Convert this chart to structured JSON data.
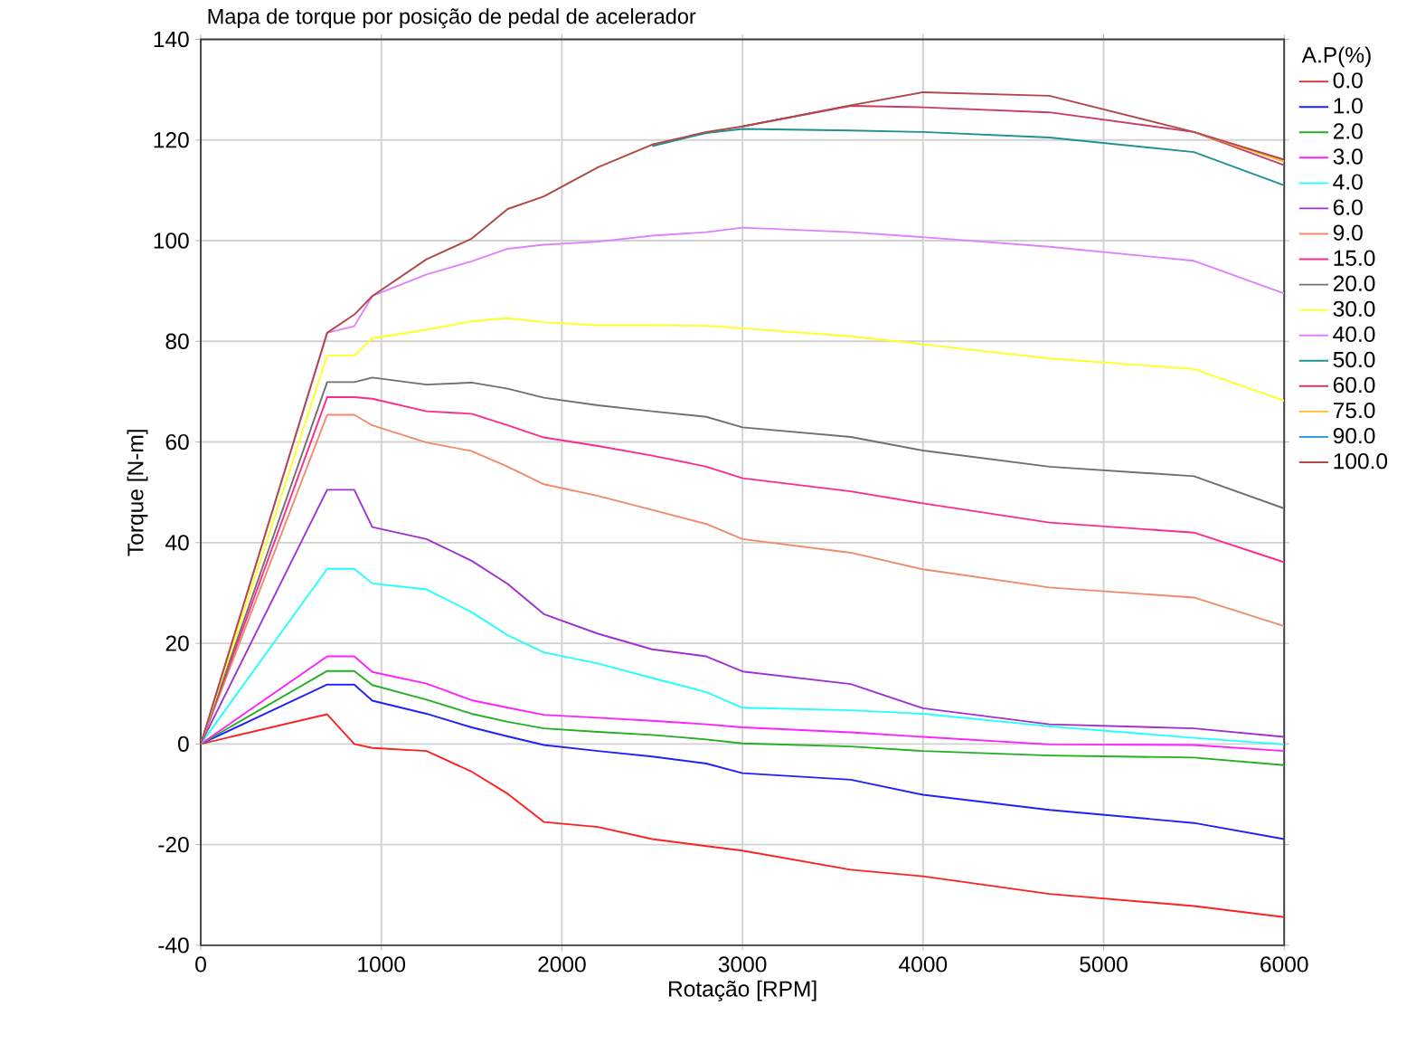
{
  "chart_data": {
    "type": "line",
    "title": "Mapa de torque por posição de pedal de acelerador",
    "xlabel": "Rotação [RPM]",
    "ylabel": "Torque [N-m]",
    "legend_title": "A.P(%)",
    "x": [
      0,
      700,
      850,
      950,
      1250,
      1500,
      1700,
      1900,
      2200,
      2500,
      2800,
      3000,
      3600,
      4000,
      4700,
      5500,
      6000
    ],
    "xlim": [
      0,
      6000
    ],
    "xticks": [
      0,
      1000,
      2000,
      3000,
      4000,
      5000,
      6000
    ],
    "ylim": [
      -40,
      140
    ],
    "yticks": [
      -40,
      -20,
      0,
      20,
      40,
      60,
      80,
      100,
      120,
      140
    ],
    "grid": true,
    "legend": "right",
    "line_style": "solid",
    "series": [
      {
        "name": "0.0",
        "color": "#ff2020",
        "values": [
          0,
          5.9,
          0,
          -0.8,
          -1.4,
          -5.5,
          -9.9,
          -15.5,
          -16.5,
          -18.9,
          -20.3,
          -21.2,
          -25,
          -26.3,
          -29.8,
          -32.2,
          -34.4
        ]
      },
      {
        "name": "1.0",
        "color": "#2020ff",
        "values": [
          0,
          11.8,
          11.8,
          8.6,
          6.0,
          3.3,
          1.5,
          -0.2,
          -1.4,
          -2.5,
          -3.9,
          -5.8,
          -7.1,
          -10.1,
          -13.1,
          -15.7,
          -18.9
        ]
      },
      {
        "name": "2.0",
        "color": "#22b022",
        "values": [
          0,
          14.5,
          14.5,
          11.7,
          8.8,
          6.0,
          4.4,
          3.1,
          2.4,
          1.8,
          0.9,
          0.1,
          -0.5,
          -1.4,
          -2.3,
          -2.7,
          -4.2
        ]
      },
      {
        "name": "3.0",
        "color": "#ff20ff",
        "values": [
          0,
          17.4,
          17.4,
          14.3,
          12.0,
          8.7,
          7.2,
          5.8,
          5.2,
          4.6,
          3.9,
          3.3,
          2.3,
          1.4,
          -0.1,
          -0.2,
          -1.4
        ]
      },
      {
        "name": "4.0",
        "color": "#20ffff",
        "values": [
          0,
          34.8,
          34.8,
          31.9,
          30.7,
          26.2,
          21.6,
          18.2,
          16.0,
          13.1,
          10.3,
          7.2,
          6.7,
          6.0,
          3.5,
          1.2,
          -0.1
        ]
      },
      {
        "name": "6.0",
        "color": "#a030d0",
        "values": [
          0,
          50.5,
          50.5,
          43.1,
          40.7,
          36.4,
          31.8,
          25.8,
          21.9,
          18.8,
          17.4,
          14.4,
          11.9,
          7.1,
          3.9,
          3.1,
          1.4
        ]
      },
      {
        "name": "9.0",
        "color": "#f08a6a",
        "values": [
          0,
          65.4,
          65.4,
          63.3,
          59.9,
          58.2,
          55.1,
          51.6,
          49.3,
          46.5,
          43.7,
          40.7,
          38.0,
          34.7,
          31.1,
          29.1,
          23.4
        ]
      },
      {
        "name": "15.0",
        "color": "#ff2a90",
        "values": [
          0,
          68.9,
          68.9,
          68.6,
          66.1,
          65.6,
          63.3,
          60.9,
          59.2,
          57.3,
          55.1,
          52.8,
          50.2,
          47.8,
          44.0,
          42.0,
          36.1
        ]
      },
      {
        "name": "20.0",
        "color": "#707070",
        "values": [
          0,
          71.9,
          71.9,
          72.8,
          71.4,
          71.8,
          70.6,
          68.8,
          67.3,
          66.1,
          65.0,
          62.9,
          61.0,
          58.3,
          55.1,
          53.2,
          46.8
        ]
      },
      {
        "name": "30.0",
        "color": "#ffff20",
        "values": [
          0,
          77.2,
          77.2,
          80.6,
          82.3,
          84.0,
          84.6,
          83.8,
          83.2,
          83.2,
          83.1,
          82.6,
          81.0,
          79.4,
          76.6,
          74.5,
          68.2
        ]
      },
      {
        "name": "40.0",
        "color": "#e080ff",
        "values": [
          0,
          81.7,
          83.0,
          89.0,
          93.3,
          95.9,
          98.4,
          99.2,
          99.8,
          101.0,
          101.7,
          102.6,
          101.7,
          100.7,
          98.8,
          96.0,
          89.5
        ]
      },
      {
        "name": "50.0",
        "color": "#209090",
        "values": [
          null,
          null,
          null,
          null,
          null,
          null,
          null,
          null,
          null,
          118.8,
          121.4,
          122.2,
          121.9,
          121.6,
          120.5,
          117.6,
          111.0
        ]
      },
      {
        "name": "60.0",
        "color": "#c83c6a",
        "values": [
          null,
          null,
          null,
          null,
          null,
          null,
          null,
          null,
          null,
          null,
          null,
          122.7,
          126.8,
          126.5,
          125.5,
          121.6,
          115.0
        ]
      },
      {
        "name": "75.0",
        "color": "#ffc020",
        "values": [
          null,
          null,
          null,
          null,
          null,
          null,
          null,
          null,
          null,
          null,
          null,
          null,
          null,
          null,
          null,
          121.6,
          115.7
        ]
      },
      {
        "name": "90.0",
        "color": "#30a0e0",
        "values": [
          null,
          null,
          null,
          null,
          null,
          null,
          null,
          null,
          null,
          null,
          null,
          null,
          null,
          null,
          null,
          null,
          null
        ]
      },
      {
        "name": "100.0",
        "color": "#b04848",
        "values": [
          0,
          81.7,
          85.3,
          89.0,
          96.3,
          100.4,
          106.3,
          108.8,
          114.6,
          119.1,
          121.6,
          122.7,
          126.9,
          129.5,
          128.8,
          121.6,
          116.1
        ]
      }
    ]
  }
}
